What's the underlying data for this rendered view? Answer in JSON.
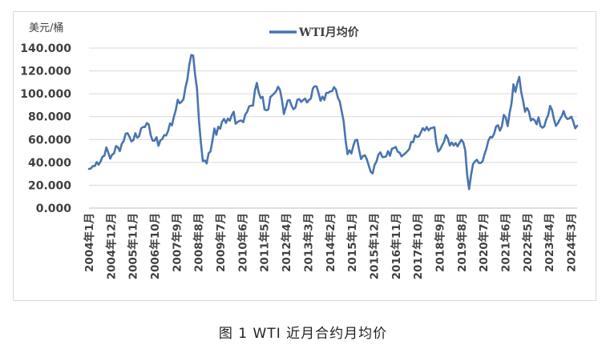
{
  "caption": "图 1  WTI 近月合约月均价",
  "chart_data": {
    "type": "line",
    "ylabel": "美元/桶",
    "ylim": [
      0,
      140
    ],
    "y_ticks": [
      "0.000",
      "20.000",
      "40.000",
      "60.000",
      "80.000",
      "100.000",
      "120.000",
      "140.000"
    ],
    "x_ticks": [
      "2004年1月",
      "2004年12月",
      "2005年11月",
      "2006年10月",
      "2007年9月",
      "2008年8月",
      "2009年7月",
      "2010年6月",
      "2011年5月",
      "2012年4月",
      "2013年3月",
      "2014年2月",
      "2015年1月",
      "2015年12月",
      "2016年11月",
      "2017年10月",
      "2018年9月",
      "2019年8月",
      "2020年7月",
      "2021年6月",
      "2022年5月",
      "2023年4月",
      "2024年3月"
    ],
    "x_start": "2004-01",
    "x_end": "2024-06",
    "grid": true,
    "legend_position": "top-center",
    "series": [
      {
        "name": "WTI月均价",
        "color": "#4a74b0",
        "values": [
          34.3,
          34.7,
          36.8,
          36.7,
          40.3,
          38.0,
          40.7,
          44.9,
          45.9,
          53.1,
          48.5,
          43.3,
          46.8,
          48.0,
          54.3,
          53.2,
          49.8,
          56.3,
          58.7,
          65.0,
          65.6,
          62.3,
          58.3,
          59.4,
          65.5,
          61.6,
          62.9,
          69.7,
          70.9,
          70.9,
          74.4,
          73.1,
          63.8,
          58.9,
          59.1,
          62.0,
          54.5,
          59.3,
          60.4,
          63.9,
          63.5,
          67.5,
          74.1,
          72.4,
          79.9,
          85.8,
          94.8,
          91.7,
          93.0,
          95.4,
          105.5,
          112.6,
          125.4,
          133.9,
          133.4,
          116.7,
          104.1,
          76.6,
          57.3,
          41.1,
          41.7,
          39.1,
          47.9,
          49.6,
          59.0,
          69.6,
          64.1,
          71.1,
          69.4,
          75.7,
          78.0,
          74.5,
          78.3,
          76.4,
          81.2,
          84.3,
          73.7,
          75.3,
          76.3,
          76.6,
          75.2,
          81.9,
          84.3,
          89.0,
          89.6,
          89.6,
          102.9,
          109.5,
          100.9,
          96.3,
          97.3,
          86.3,
          85.5,
          86.3,
          97.2,
          98.6,
          100.3,
          102.2,
          106.2,
          103.3,
          94.7,
          82.3,
          87.9,
          94.1,
          94.5,
          89.5,
          86.5,
          87.9,
          94.8,
          95.3,
          92.9,
          94.5,
          95.8,
          92.4,
          94.5,
          95.8,
          104.6,
          106.6,
          106.3,
          100.5,
          93.9,
          97.6,
          94.6,
          100.8,
          100.8,
          102.1,
          102.2,
          105.8,
          103.6,
          96.5,
          93.2,
          84.4,
          75.8,
          59.3,
          47.2,
          50.6,
          47.8,
          54.5,
          59.3,
          59.8,
          50.9,
          42.9,
          45.5,
          46.2,
          42.7,
          37.3,
          31.8,
          30.3,
          37.6,
          40.8,
          46.7,
          48.8,
          44.7,
          44.7,
          45.2,
          49.8,
          45.7,
          52.0,
          52.5,
          53.5,
          49.3,
          48.5,
          45.2,
          46.6,
          48.0,
          49.8,
          51.6,
          57.9,
          57.7,
          63.7,
          62.2,
          62.7,
          66.3,
          69.9,
          67.9,
          70.9,
          68.0,
          69.8,
          70.2,
          70.8,
          56.7,
          49.5,
          51.4,
          54.9,
          58.2,
          63.9,
          60.8,
          54.7,
          57.4,
          54.8,
          57.0,
          54.0,
          56.9,
          59.8,
          57.5,
          50.5,
          29.2,
          16.6,
          28.6,
          38.3,
          40.7,
          42.3,
          39.6,
          39.4,
          40.9,
          47.1,
          52.1,
          59.0,
          62.3,
          61.7,
          65.2,
          71.4,
          72.5,
          67.7,
          71.6,
          81.5,
          79.2,
          71.7,
          83.2,
          91.6,
          108.3,
          101.6,
          109.3,
          114.8,
          101.6,
          93.7,
          84.3,
          87.5,
          84.4,
          76.5,
          78.1,
          76.8,
          73.3,
          79.4,
          71.8,
          70.3,
          71.6,
          77.6,
          81.4,
          89.4,
          85.6,
          77.7,
          71.9,
          74.2,
          77.5,
          80.3,
          84.9,
          79.8,
          77.9,
          78.5,
          80.0,
          75.6,
          69.8,
          72.0
        ]
      }
    ]
  }
}
